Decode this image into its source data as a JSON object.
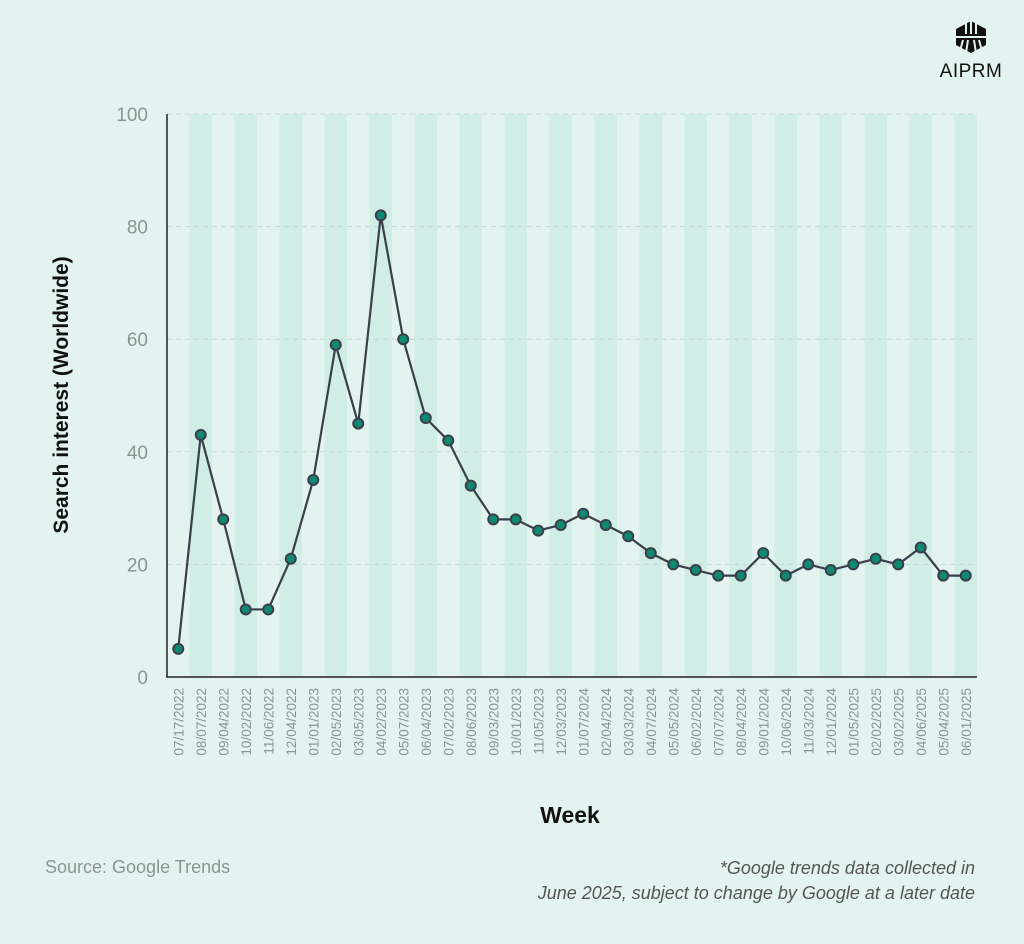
{
  "logo": {
    "text": "AIPRM"
  },
  "source": "Source: Google Trends",
  "note": [
    "*Google trends data collected in",
    "June 2025, subject to change by Google at a later date"
  ],
  "colors": {
    "background": "#e3f4f0",
    "band": "#d0ede6",
    "line": "#3a3f4a",
    "marker": "#0e8a72"
  },
  "chart_data": {
    "type": "line",
    "xlabel": "Week",
    "ylabel": "Search interest (Worldwide)",
    "ylim": [
      0,
      100
    ],
    "yticks": [
      0,
      20,
      40,
      60,
      80,
      100
    ],
    "grid": "horizontal dashed",
    "categories": [
      "07/17/2022",
      "08/07/2022",
      "09/04/2022",
      "10/02/2022",
      "11/06/2022",
      "12/04/2022",
      "01/01/2023",
      "02/05/2023",
      "03/05/2023",
      "04/02/2023",
      "05/07/2023",
      "06/04/2023",
      "07/02/2023",
      "08/06/2023",
      "09/03/2023",
      "10/01/2023",
      "11/05/2023",
      "12/03/2023",
      "01/07/2024",
      "02/04/2024",
      "03/03/2024",
      "04/07/2024",
      "05/05/2024",
      "06/02/2024",
      "07/07/2024",
      "08/04/2024",
      "09/01/2024",
      "10/06/2024",
      "11/03/2024",
      "12/01/2024",
      "01/05/2025",
      "02/02/2025",
      "03/02/2025",
      "04/06/2025",
      "05/04/2025",
      "06/01/2025"
    ],
    "values": [
      5,
      43,
      28,
      12,
      12,
      21,
      35,
      59,
      45,
      82,
      60,
      46,
      42,
      34,
      28,
      28,
      26,
      27,
      29,
      27,
      25,
      22,
      20,
      19,
      18,
      18,
      22,
      18,
      20,
      19,
      20,
      21,
      20,
      23,
      18,
      18
    ]
  }
}
